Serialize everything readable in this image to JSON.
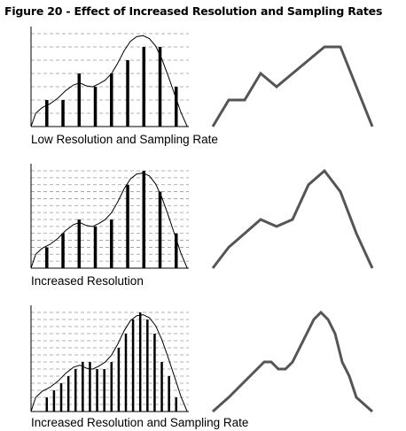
{
  "title": "Figure 20 - Effect of Increased Resolution and Sampling Rates",
  "panels": [
    {
      "caption": "Low Resolution and Sampling Rate",
      "levels": 7,
      "samples": [
        2,
        2,
        4,
        3,
        4,
        5,
        6,
        6,
        3
      ]
    },
    {
      "caption": "Increased Resolution",
      "levels": 14,
      "samples": [
        3,
        5,
        7,
        6,
        7,
        12,
        14,
        11,
        5
      ]
    },
    {
      "caption": "Increased Resolution and Sampling Rate",
      "levels": 14,
      "samples": [
        2,
        3,
        4,
        5,
        6,
        7,
        7,
        6,
        6,
        7,
        9,
        11,
        13,
        14,
        13,
        11,
        7,
        5,
        2
      ]
    }
  ],
  "colors": {
    "bars": "#000000",
    "axis": "#000000",
    "curve": "#000000",
    "grid": "#999999",
    "output": "#555555"
  }
}
